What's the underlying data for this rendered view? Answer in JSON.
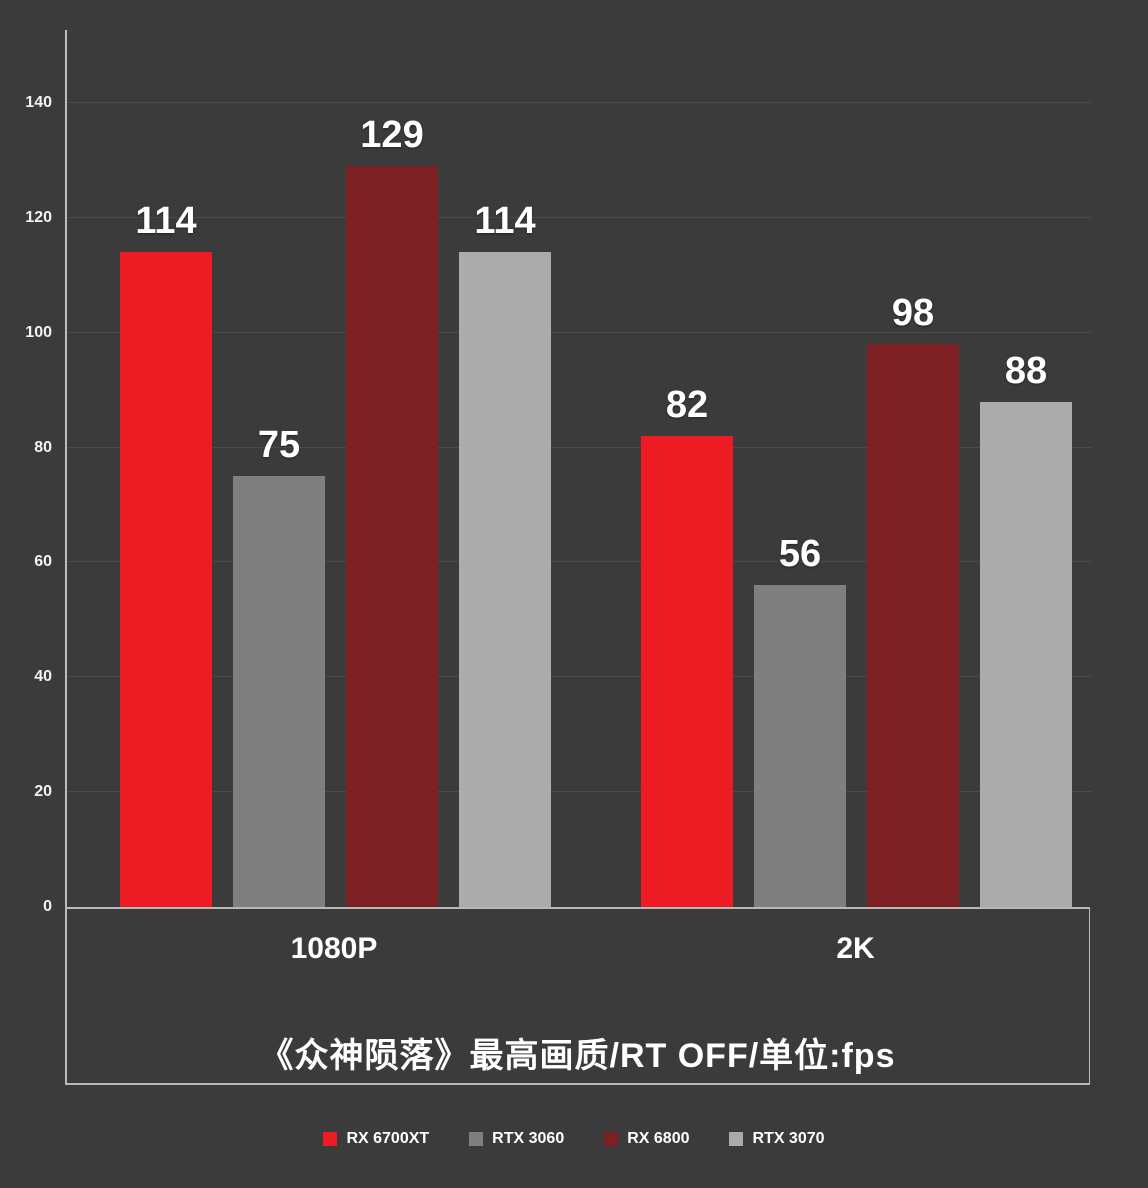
{
  "chart_data": {
    "type": "bar",
    "title": "《众神陨落》最高画质/RT OFF/单位:fps",
    "categories": [
      "1080P",
      "2K"
    ],
    "series": [
      {
        "name": "RX 6700XT",
        "color": "#ed1c24",
        "values": [
          114,
          82
        ]
      },
      {
        "name": "RTX 3060",
        "color": "#7f7f7f",
        "values": [
          75,
          56
        ]
      },
      {
        "name": "RX 6800",
        "color": "#7d2023",
        "values": [
          129,
          98
        ]
      },
      {
        "name": "RTX 3070",
        "color": "#ababab",
        "values": [
          114,
          88
        ]
      }
    ],
    "ylim": [
      0,
      140
    ],
    "ytick_step": 20,
    "yticks": [
      0,
      20,
      40,
      60,
      80,
      100,
      120,
      140
    ],
    "grid": true,
    "legend_position": "bottom",
    "xlabel": "",
    "ylabel": ""
  },
  "colors": {
    "background": "#3b3b3b",
    "gridline": "#4a4a4a",
    "axis_box": "#b8b8b8",
    "text": "#ffffff"
  }
}
